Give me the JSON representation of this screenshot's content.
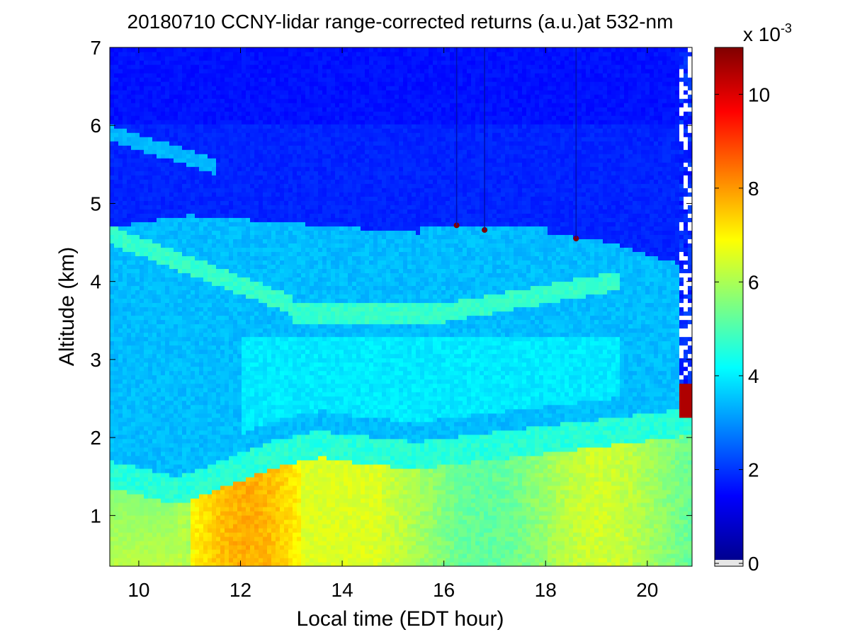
{
  "chart_data": {
    "type": "heatmap",
    "title": "20180710 CCNY-lidar range-corrected returns (a.u.)at 532-nm",
    "xlabel": "Local time (EDT hour)",
    "ylabel": "Altitude (km)",
    "xlim": [
      9.43,
      20.88
    ],
    "ylim": [
      0.35,
      7
    ],
    "xticks": [
      10,
      12,
      14,
      16,
      18,
      20
    ],
    "yticks": [
      1,
      2,
      3,
      4,
      5,
      6,
      7
    ],
    "colorbar": {
      "colormap": "jet",
      "range": [
        0,
        11
      ],
      "ticks": [
        0,
        2,
        4,
        6,
        8,
        10
      ],
      "exponent_base": "x 10",
      "exponent_power": "-3"
    },
    "features": [
      {
        "name": "boundary-layer",
        "description": "high returns (~5-8) below 1.3-2.1 km, peak ~8 near 12-13 h"
      },
      {
        "name": "elevated-aerosol-layer",
        "description": "returns ~4.5 along 3.5-4.7 km, 10-19 h"
      },
      {
        "name": "cloud",
        "time": 20.7,
        "base_km": 2.4,
        "description": "cloud base after 20.6 h, signal attenuated above"
      }
    ]
  }
}
